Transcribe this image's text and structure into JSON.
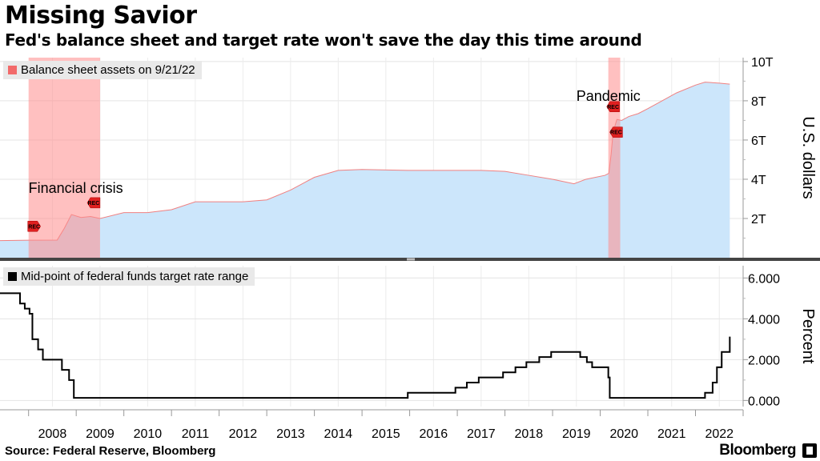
{
  "header": {
    "title": "Missing Savior",
    "subtitle": "Fed's balance sheet and target rate won't save the day this time around"
  },
  "footer": {
    "source": "Source: Federal Reserve, Bloomberg",
    "brand": "Bloomberg"
  },
  "colors": {
    "area_fill": "#cce6fb",
    "area_line": "#f08080",
    "recession_band": "#ff8c8c",
    "rate_line": "#000000",
    "legend_bg": "#e9e9e9"
  },
  "chart_data": [
    {
      "type": "area",
      "legend": "Balance sheet assets on 9/21/22",
      "ylabel": "U.S. dollars",
      "ytick_labels": [
        "2T",
        "4T",
        "6T",
        "8T",
        "10T"
      ],
      "ytick_values": [
        2,
        4,
        6,
        8,
        10
      ],
      "ylim": [
        0,
        10.2
      ],
      "xlim": [
        2007.4,
        2023.0
      ],
      "recessions": [
        [
          2008.0,
          2009.5
        ],
        [
          2020.17,
          2020.42
        ]
      ],
      "recession_marker_label": "REC",
      "annotations": [
        {
          "text": "Financial crisis",
          "x": 2008.2,
          "y": 3.5
        },
        {
          "text": "Pandemic",
          "x": 2019.7,
          "y": 8.2
        }
      ],
      "x": [
        2007.4,
        2008.0,
        2008.6,
        2008.75,
        2008.9,
        2009.1,
        2009.3,
        2009.5,
        2010.0,
        2010.5,
        2011.0,
        2011.5,
        2012.0,
        2012.5,
        2013.0,
        2013.5,
        2014.0,
        2014.5,
        2015.0,
        2016.0,
        2017.0,
        2017.5,
        2018.0,
        2018.5,
        2019.0,
        2019.45,
        2019.7,
        2020.1,
        2020.18,
        2020.23,
        2020.27,
        2020.35,
        2020.45,
        2020.6,
        2020.8,
        2021.0,
        2021.3,
        2021.6,
        2022.0,
        2022.2,
        2022.5,
        2022.72
      ],
      "y": [
        0.87,
        0.89,
        0.9,
        1.5,
        2.2,
        2.05,
        2.1,
        2.0,
        2.3,
        2.3,
        2.45,
        2.85,
        2.85,
        2.85,
        2.95,
        3.45,
        4.1,
        4.45,
        4.5,
        4.45,
        4.45,
        4.45,
        4.4,
        4.2,
        4.0,
        3.77,
        4.0,
        4.2,
        4.3,
        5.3,
        6.4,
        7.05,
        7.0,
        7.2,
        7.35,
        7.6,
        8.0,
        8.4,
        8.8,
        8.95,
        8.9,
        8.85
      ]
    },
    {
      "type": "line",
      "legend": "Mid-point of federal funds target rate range",
      "ylabel": "Percent",
      "ytick_labels": [
        "0.000",
        "2.000",
        "4.000",
        "6.000"
      ],
      "ytick_values": [
        0,
        2,
        4,
        6
      ],
      "ylim": [
        -0.3,
        6.6
      ],
      "xlim": [
        2007.4,
        2023.0
      ],
      "x": [
        2007.4,
        2007.82,
        2007.82,
        2007.92,
        2007.92,
        2008.02,
        2008.02,
        2008.08,
        2008.08,
        2008.2,
        2008.2,
        2008.3,
        2008.3,
        2008.7,
        2008.7,
        2008.85,
        2008.85,
        2008.95,
        2008.95,
        2015.96,
        2015.96,
        2016.96,
        2016.96,
        2017.2,
        2017.2,
        2017.45,
        2017.45,
        2017.96,
        2017.96,
        2018.22,
        2018.22,
        2018.45,
        2018.45,
        2018.72,
        2018.72,
        2018.97,
        2018.97,
        2019.58,
        2019.58,
        2019.72,
        2019.72,
        2019.83,
        2019.83,
        2020.17,
        2020.17,
        2020.2,
        2020.2,
        2022.2,
        2022.2,
        2022.36,
        2022.36,
        2022.45,
        2022.45,
        2022.55,
        2022.55,
        2022.72,
        2022.72
      ],
      "y": [
        5.25,
        5.25,
        4.75,
        4.75,
        4.5,
        4.5,
        4.25,
        4.25,
        3.0,
        3.0,
        2.5,
        2.5,
        2.0,
        2.0,
        1.5,
        1.5,
        1.0,
        1.0,
        0.125,
        0.125,
        0.375,
        0.375,
        0.625,
        0.625,
        0.875,
        0.875,
        1.125,
        1.125,
        1.375,
        1.375,
        1.625,
        1.625,
        1.875,
        1.875,
        2.125,
        2.125,
        2.375,
        2.375,
        2.125,
        2.125,
        1.875,
        1.875,
        1.625,
        1.625,
        1.125,
        1.125,
        0.125,
        0.125,
        0.375,
        0.375,
        0.875,
        0.875,
        1.625,
        1.625,
        2.375,
        2.375,
        3.125
      ]
    }
  ],
  "xaxis": {
    "tick_labels": [
      "2008",
      "2009",
      "2010",
      "2011",
      "2012",
      "2013",
      "2014",
      "2015",
      "2016",
      "2017",
      "2018",
      "2019",
      "2020",
      "2021",
      "2022"
    ],
    "tick_values": [
      2008,
      2009,
      2010,
      2011,
      2012,
      2013,
      2014,
      2015,
      2016,
      2017,
      2018,
      2019,
      2020,
      2021,
      2022
    ]
  }
}
